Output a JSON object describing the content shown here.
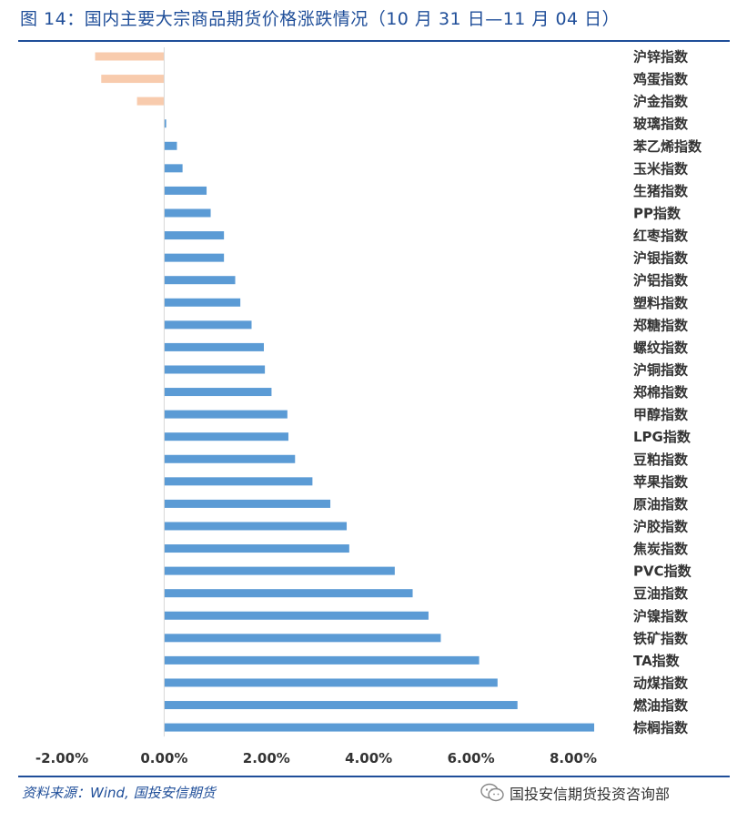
{
  "header": {
    "title": "图 14：国内主要大宗商品期货价格涨跌情况（10 月 31 日—11 月 04 日）"
  },
  "footer": {
    "source": "资料来源：Wind, 国投安信期货",
    "watermark": "国投安信期货投资咨询部",
    "watermark_icon": "wechat-icon"
  },
  "chart_data": {
    "type": "bar",
    "orientation": "horizontal",
    "title": "",
    "xlabel": "",
    "ylabel": "",
    "xlim": [
      -0.02,
      0.08
    ],
    "xticks": [
      -0.02,
      0,
      0.02,
      0.04,
      0.06,
      0.08
    ],
    "xtick_labels": [
      "-2.00%",
      "0.00%",
      "2.00%",
      "4.00%",
      "6.00%",
      "8.00%"
    ],
    "grid": false,
    "colors": {
      "positive": "#5b9bd5",
      "negative": "#f8cbad"
    },
    "categories": [
      "沪锌指数",
      "鸡蛋指数",
      "沪金指数",
      "玻璃指数",
      "苯乙烯指数",
      "玉米指数",
      "生猪指数",
      "PP指数",
      "红枣指数",
      "沪银指数",
      "沪铝指数",
      "塑料指数",
      "郑糖指数",
      "螺纹指数",
      "沪铜指数",
      "郑棉指数",
      "甲醇指数",
      "LPG指数",
      "豆粕指数",
      "苹果指数",
      "原油指数",
      "沪胶指数",
      "焦炭指数",
      "PVC指数",
      "豆油指数",
      "沪镍指数",
      "铁矿指数",
      "TA指数",
      "动煤指数",
      "燃油指数",
      "棕榈指数"
    ],
    "values": [
      -0.0135,
      -0.0123,
      -0.0053,
      0.0004,
      0.0025,
      0.0036,
      0.0083,
      0.0091,
      0.0117,
      0.0117,
      0.0139,
      0.0149,
      0.0171,
      0.0195,
      0.0197,
      0.021,
      0.0241,
      0.0243,
      0.0256,
      0.029,
      0.0325,
      0.0357,
      0.0362,
      0.0451,
      0.0486,
      0.0517,
      0.0541,
      0.0616,
      0.0652,
      0.0691,
      0.0841
    ]
  }
}
